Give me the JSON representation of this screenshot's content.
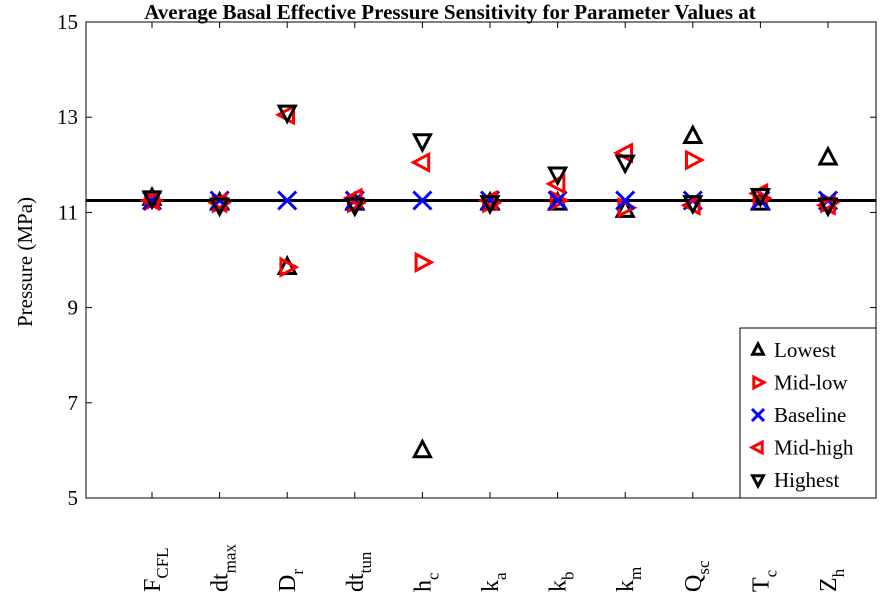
{
  "chart_data": {
    "type": "scatter",
    "title": "Average Basal Effective Pressure Sensitivity for Parameter Values at",
    "ylabel": "Pressure (MPa)",
    "xlabel": "",
    "ylim": [
      5,
      15
    ],
    "yticks": [
      "5",
      "7",
      "9",
      "11",
      "13",
      "15"
    ],
    "grid": false,
    "legend_position": "bottom-right",
    "baseline_value": 11.25,
    "categories": [
      {
        "main": "F",
        "sub": "CFL"
      },
      {
        "main": "dt",
        "sub": "max"
      },
      {
        "main": "D",
        "sub": "r"
      },
      {
        "main": "dt",
        "sub": "tun"
      },
      {
        "main": "h",
        "sub": "c"
      },
      {
        "main": "k",
        "sub": "a"
      },
      {
        "main": "k",
        "sub": "b"
      },
      {
        "main": "k",
        "sub": "m"
      },
      {
        "main": "Q",
        "sub": "sc"
      },
      {
        "main": "T",
        "sub": "c"
      },
      {
        "main": "Z",
        "sub": "h"
      }
    ],
    "series": [
      {
        "name": "Lowest",
        "marker": "triangle-up",
        "color": "#000000",
        "values": [
          11.3,
          11.2,
          9.85,
          11.2,
          6.0,
          11.2,
          11.2,
          11.05,
          12.6,
          11.2,
          12.15
        ]
      },
      {
        "name": "Mid-low",
        "marker": "triangle-right",
        "color": "#ff0000",
        "values": [
          11.25,
          11.2,
          9.85,
          11.2,
          9.95,
          11.2,
          11.25,
          11.1,
          12.1,
          11.3,
          11.2
        ]
      },
      {
        "name": "Baseline",
        "marker": "x",
        "color": "#0000ff",
        "values": [
          11.25,
          11.25,
          11.25,
          11.25,
          11.25,
          11.25,
          11.25,
          11.25,
          11.25,
          11.25,
          11.25
        ]
      },
      {
        "name": "Mid-high",
        "marker": "triangle-left",
        "color": "#ff0000",
        "values": [
          11.25,
          11.2,
          13.05,
          11.3,
          12.05,
          11.25,
          11.6,
          12.25,
          11.15,
          11.4,
          11.15
        ]
      },
      {
        "name": "Highest",
        "marker": "triangle-down",
        "color": "#000000",
        "values": [
          11.3,
          11.15,
          13.1,
          11.15,
          12.5,
          11.2,
          11.8,
          12.05,
          11.2,
          11.35,
          11.15
        ]
      }
    ]
  }
}
